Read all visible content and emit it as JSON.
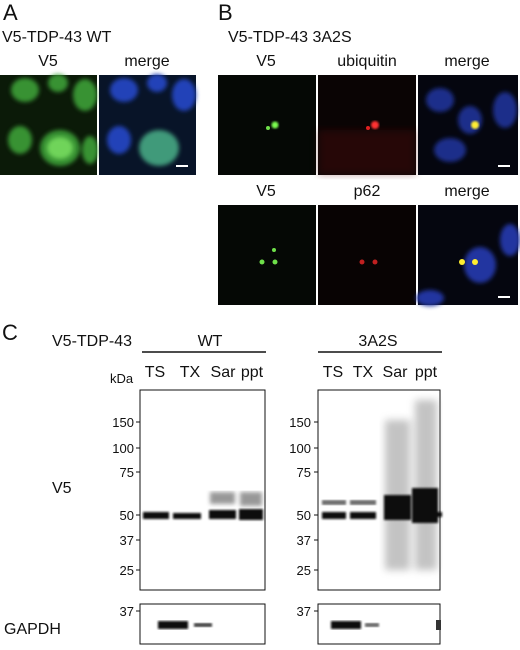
{
  "panels": [
    {
      "letter": "A",
      "title": "V5-TDP-43 WT",
      "channels": [
        "V5",
        "merge"
      ]
    },
    {
      "letter": "B",
      "title": "V5-TDP-43 3A2S",
      "rows": [
        [
          "V5",
          "ubiquitin",
          "merge"
        ],
        [
          "V5",
          "p62",
          "merge"
        ]
      ]
    },
    {
      "letter": "C",
      "construct": "V5-TDP-43",
      "groups": [
        {
          "label": "WT",
          "lanes": [
            "TS",
            "TX",
            "Sar",
            "ppt"
          ]
        },
        {
          "label": "3A2S",
          "lanes": [
            "TS",
            "TX",
            "Sar",
            "ppt"
          ]
        }
      ],
      "unit": "kDa",
      "markers": [
        150,
        100,
        75,
        50,
        37,
        25
      ],
      "gapdh_marker": 37,
      "blots": [
        "V5",
        "GAPDH"
      ]
    }
  ]
}
